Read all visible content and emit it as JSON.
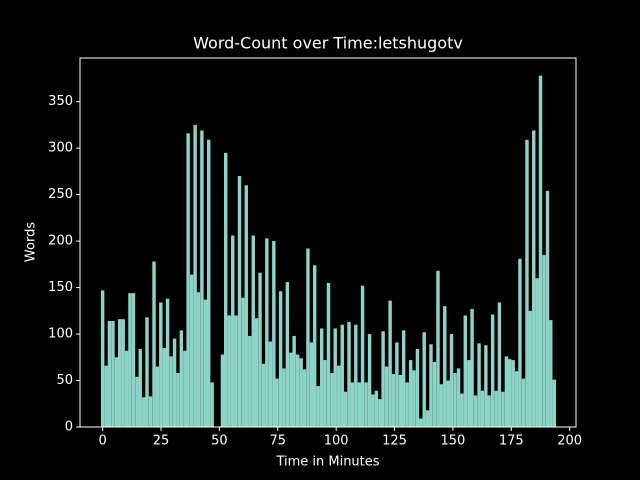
{
  "chart_data": {
    "type": "bar",
    "title": "Word-Count over Time:letshugotv",
    "xlabel": "Time in Minutes",
    "ylabel": "Words",
    "color": "#8dd3c7",
    "x": [
      0,
      1.5,
      2.9,
      4.4,
      5.9,
      7.3,
      8.8,
      10.3,
      11.7,
      13.2,
      14.7,
      16.1,
      17.6,
      19.0,
      20.5,
      22.0,
      23.4,
      24.9,
      26.4,
      27.8,
      29.3,
      30.8,
      32.2,
      33.7,
      35.2,
      36.6,
      38.1,
      39.6,
      41.0,
      42.5,
      44.0,
      45.4,
      46.9,
      48.3,
      49.8,
      51.3,
      52.7,
      54.2,
      55.7,
      57.1,
      58.6,
      60.1,
      61.5,
      63.0,
      64.5,
      65.9,
      67.4,
      68.9,
      70.3,
      71.8,
      73.3,
      74.7,
      76.2,
      77.6,
      79.1,
      80.6,
      82.0,
      83.5,
      85.0,
      86.4,
      87.9,
      89.4,
      90.8,
      92.3,
      93.8,
      95.2,
      96.7,
      98.2,
      99.6,
      101.1,
      102.6,
      104.0,
      105.5,
      106.9,
      108.4,
      109.9,
      111.3,
      112.8,
      114.3,
      115.7,
      117.2,
      118.7,
      120.1,
      121.6,
      123.1,
      124.5,
      126.0,
      127.5,
      128.9,
      130.4,
      131.9,
      133.3,
      134.8,
      136.2,
      137.7,
      139.2,
      140.6,
      142.1,
      143.6,
      145.0,
      146.5,
      148.0,
      149.4,
      150.9,
      152.4,
      153.8,
      155.3,
      156.8,
      158.2,
      159.7,
      161.2,
      162.6,
      164.1,
      165.5,
      167.0,
      168.5,
      169.9,
      171.4,
      172.9,
      174.3,
      175.8,
      177.3,
      178.7,
      180.2,
      181.7,
      183.1,
      184.6,
      186.1,
      187.5,
      189.0,
      190.5,
      191.9,
      193.4
    ],
    "values": [
      147,
      66,
      114,
      114,
      75,
      116,
      116,
      82,
      144,
      144,
      54,
      84,
      32,
      118,
      33,
      178,
      65,
      134,
      85,
      138,
      76,
      95,
      58,
      104,
      82,
      316,
      164,
      325,
      145,
      319,
      137,
      309,
      48,
      0,
      0,
      78,
      295,
      120,
      206,
      120,
      270,
      139,
      260,
      98,
      206,
      117,
      166,
      68,
      203,
      92,
      200,
      52,
      146,
      63,
      156,
      80,
      98,
      78,
      74,
      62,
      192,
      91,
      174,
      44,
      106,
      72,
      155,
      58,
      106,
      66,
      110,
      38,
      113,
      48,
      110,
      48,
      152,
      48,
      100,
      35,
      39,
      30,
      103,
      65,
      136,
      57,
      91,
      56,
      104,
      48,
      72,
      61,
      84,
      9,
      102,
      18,
      89,
      70,
      168,
      46,
      130,
      50,
      100,
      58,
      63,
      36,
      120,
      72,
      127,
      34,
      90,
      39,
      88,
      34,
      121,
      39,
      134,
      38,
      76,
      73,
      72,
      60,
      181,
      52,
      309,
      125,
      319,
      160,
      378,
      185,
      254,
      115,
      51
    ],
    "xlim": [
      -9.7,
      202.7
    ],
    "xticks": [
      0,
      25,
      50,
      75,
      100,
      125,
      150,
      175,
      200
    ],
    "ylim": [
      0,
      397
    ],
    "yticks": [
      0,
      50,
      100,
      150,
      200,
      250,
      300,
      350
    ]
  }
}
